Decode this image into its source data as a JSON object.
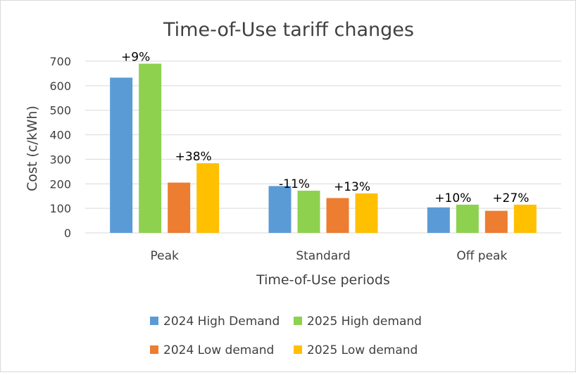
{
  "chart_data": {
    "type": "bar",
    "title": "Time-of-Use tariff changes",
    "xlabel": "Time-of-Use periods",
    "ylabel": "Cost (c/kWh)",
    "ylim": [
      0,
      700
    ],
    "yticks": [
      0,
      100,
      200,
      300,
      400,
      500,
      600,
      700
    ],
    "categories": [
      "Peak",
      "Standard",
      "Off peak"
    ],
    "grid": true,
    "legend_position": "bottom",
    "series": [
      {
        "name": "2024 High Demand",
        "color": "#5b9bd5",
        "values": [
          633,
          191,
          104
        ]
      },
      {
        "name": "2025 High demand",
        "color": "#8ed14f",
        "values": [
          690,
          172,
          115
        ]
      },
      {
        "name": "2024 Low demand",
        "color": "#ed7d31",
        "values": [
          205,
          142,
          90
        ]
      },
      {
        "name": "2025 Low demand",
        "color": "#ffc000",
        "values": [
          284,
          161,
          115
        ]
      }
    ],
    "annotations": [
      {
        "text": "+9%",
        "category": 0,
        "series": 1
      },
      {
        "text": "+38%",
        "category": 0,
        "series": 3
      },
      {
        "text": "-11%",
        "category": 1,
        "series": 1
      },
      {
        "text": "+13%",
        "category": 1,
        "series": 3
      },
      {
        "text": "+10%",
        "category": 2,
        "series": 1
      },
      {
        "text": "+27%",
        "category": 2,
        "series": 3
      }
    ]
  }
}
